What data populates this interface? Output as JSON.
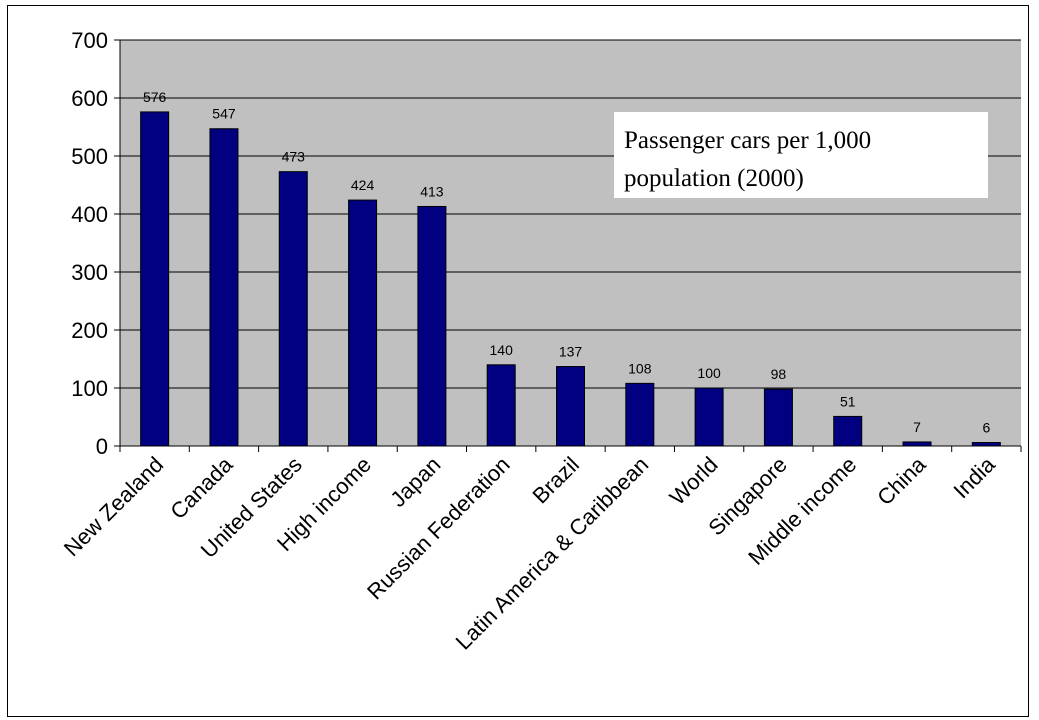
{
  "chart_data": {
    "type": "bar",
    "title": "Passenger  cars per 1,000\npopulation (2000)",
    "categories": [
      "New Zealand",
      "Canada",
      "United States",
      "High income",
      "Japan",
      "Russian Federation",
      "Brazil",
      "Latin America & Caribbean",
      "World",
      "Singapore",
      "Middle income",
      "China",
      "India"
    ],
    "values": [
      576,
      547,
      473,
      424,
      413,
      140,
      137,
      108,
      100,
      98,
      51,
      7,
      6
    ],
    "data_labels": [
      "576",
      "547",
      "473",
      "424",
      "413",
      "140",
      "137",
      "108",
      "100",
      "98",
      "51",
      "7",
      "6"
    ],
    "ylim": [
      0,
      700
    ],
    "yticks": [
      0,
      100,
      200,
      300,
      400,
      500,
      600,
      700
    ],
    "xlabel": "",
    "ylabel": "",
    "grid": true,
    "colors": {
      "bar": "#000080",
      "plot_background": "#c0c0c0",
      "gridline": "#000000"
    }
  }
}
